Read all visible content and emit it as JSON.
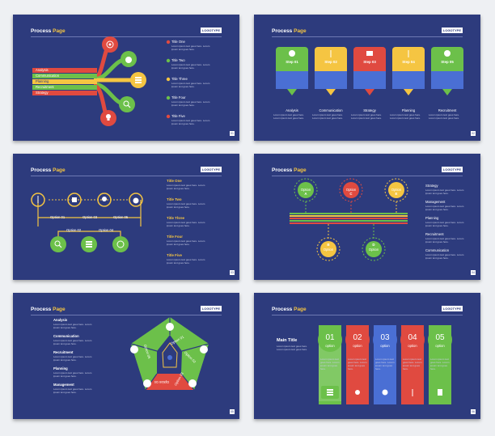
{
  "brand": {
    "title_a": "Process",
    "title_b": "Page",
    "logo": "LOGOTYPE"
  },
  "body_text": "Lorem ipsum text goes here. Lorem ipsum text goes here.",
  "colors": {
    "bg": "#2d3b7d",
    "red": "#e04a40",
    "green": "#6cc04a",
    "yellow": "#f5c542",
    "blue": "#4a6fd4",
    "text": "#ffffff"
  },
  "s1": {
    "tags": [
      "Analysis",
      "Communication",
      "Planning",
      "Recruitment",
      "Strategy"
    ],
    "titles": [
      "Title One",
      "Title Two",
      "Title Three",
      "Title Four",
      "Title Five"
    ],
    "icons": [
      "target-icon",
      "money-bag-icon",
      "stack-icon",
      "search-icon",
      "lightbulb-icon"
    ]
  },
  "s2": {
    "steps": [
      "Step 01",
      "Step 02",
      "Step 03",
      "Step 04",
      "Step 05"
    ],
    "labels": [
      "Analysis",
      "Communication",
      "Strategy",
      "Planning",
      "Recruitment"
    ]
  },
  "s3": {
    "options": [
      "Option 01",
      "Option 02",
      "Option 03",
      "Option 04",
      "Option 05"
    ],
    "titles": [
      "Title One",
      "Title Two",
      "Title Three",
      "Title Four",
      "Title Five"
    ]
  },
  "s4": {
    "top": [
      {
        "letter": "A",
        "label": "Option"
      },
      {
        "letter": "C",
        "label": "Option"
      },
      {
        "letter": "E",
        "label": "Option"
      }
    ],
    "bottom": [
      {
        "letter": "B",
        "label": "Option"
      },
      {
        "letter": "D",
        "label": "Option"
      }
    ],
    "labels": [
      "Strategy",
      "Management",
      "Planning",
      "Recruitment",
      "Communication"
    ]
  },
  "s5": {
    "labels": [
      "Analysis",
      "Communication",
      "Recruitment",
      "Planning",
      "Management"
    ],
    "options": [
      "Option 01",
      "Option 02",
      "Option 03",
      "Option 04",
      "Option 05"
    ]
  },
  "s6": {
    "main_title": "Main Title",
    "nums": [
      "01",
      "02",
      "03",
      "04",
      "05"
    ],
    "opt": "option"
  }
}
